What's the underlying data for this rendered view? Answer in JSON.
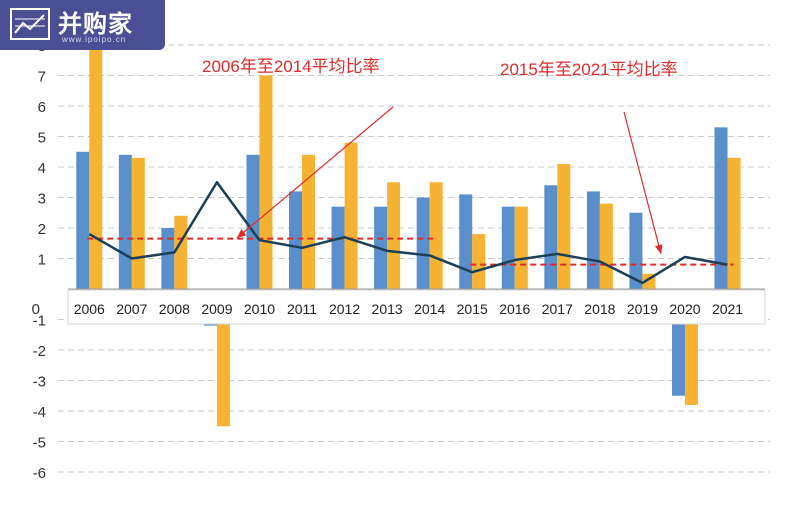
{
  "logo": {
    "text": "并购家",
    "url": "www.ipoipo.cn",
    "icon": "chart-logo-icon"
  },
  "chart_data": {
    "type": "bar",
    "categories": [
      "2006",
      "2007",
      "2008",
      "2009",
      "2010",
      "2011",
      "2012",
      "2013",
      "2014",
      "2015",
      "2016",
      "2017",
      "2018",
      "2019",
      "2020",
      "2021"
    ],
    "series": [
      {
        "type": "bar",
        "color": "#5b8fcb",
        "values": [
          4.5,
          4.4,
          2.0,
          -1.2,
          4.4,
          3.2,
          2.7,
          2.7,
          3.0,
          3.1,
          2.7,
          3.4,
          3.2,
          2.5,
          -3.5,
          5.3
        ]
      },
      {
        "type": "bar",
        "color": "#f5b233",
        "values": [
          8.0,
          4.3,
          2.4,
          -4.5,
          7.0,
          4.4,
          4.8,
          3.5,
          3.5,
          1.8,
          2.7,
          4.1,
          2.8,
          0.5,
          -3.8,
          4.3
        ]
      },
      {
        "type": "line",
        "color": "#1b3f57",
        "values": [
          1.8,
          1.0,
          1.2,
          3.5,
          1.6,
          1.35,
          1.7,
          1.25,
          1.1,
          0.55,
          0.95,
          1.15,
          0.9,
          0.2,
          1.05,
          0.8
        ]
      }
    ],
    "averages": [
      {
        "label": "2006年至2014平均比率",
        "value": 1.65,
        "from": "2006",
        "to": "2014",
        "color": "#e02b2b"
      },
      {
        "label": "2015年至2021平均比率",
        "value": 0.8,
        "from": "2015",
        "to": "2021",
        "color": "#e02b2b"
      }
    ],
    "yticks": [
      -6,
      -5,
      -4,
      -3,
      -2,
      -1,
      0,
      1,
      2,
      3,
      4,
      5,
      6,
      7,
      8
    ],
    "ylim": [
      -6,
      8
    ],
    "grid": true,
    "title": "",
    "xlabel": "",
    "ylabel": ""
  }
}
